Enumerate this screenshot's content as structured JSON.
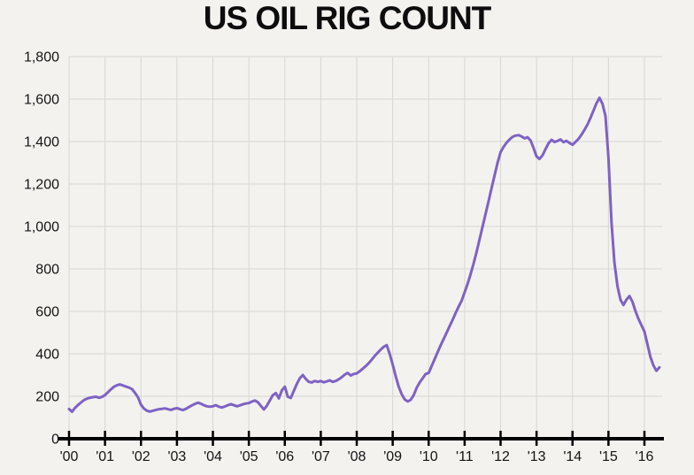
{
  "chart_data": {
    "type": "line",
    "title": "US OIL RIG COUNT",
    "xlabel": "",
    "ylabel": "",
    "ylim": [
      0,
      1800
    ],
    "grid": true,
    "legend": "none",
    "colors": {
      "background": "#f3f2ef",
      "gridline": "#d8d7d3",
      "axis": "#000000",
      "text": "#141414",
      "line": "#7e62c3"
    },
    "y_ticks": [
      0,
      200,
      400,
      600,
      800,
      1000,
      1200,
      1400,
      1600,
      1800
    ],
    "y_tick_labels": [
      "0",
      "200",
      "400",
      "600",
      "800",
      "1,000",
      "1,200",
      "1,400",
      "1,600",
      "1,800"
    ],
    "x_tick_labels": [
      "'00",
      "'01",
      "'02",
      "'03",
      "'04",
      "'05",
      "'06",
      "'07",
      "'08",
      "'09",
      "'10",
      "'11",
      "'12",
      "'13",
      "'14",
      "'15",
      "'16"
    ],
    "x_start_year": 2000,
    "points_per_year": 12,
    "series": [
      {
        "name": "US oil rig count",
        "color": "#7e62c3",
        "values": [
          140,
          127,
          146,
          159,
          171,
          182,
          189,
          193,
          196,
          198,
          193,
          197,
          206,
          219,
          233,
          245,
          252,
          256,
          251,
          246,
          241,
          234,
          216,
          195,
          160,
          142,
          132,
          128,
          132,
          136,
          139,
          141,
          143,
          139,
          136,
          141,
          144,
          139,
          135,
          141,
          149,
          157,
          164,
          170,
          165,
          158,
          153,
          151,
          153,
          158,
          151,
          147,
          152,
          158,
          163,
          158,
          153,
          157,
          162,
          166,
          168,
          175,
          180,
          172,
          155,
          138,
          155,
          180,
          205,
          215,
          190,
          228,
          245,
          198,
          192,
          225,
          258,
          285,
          300,
          282,
          268,
          265,
          272,
          268,
          272,
          266,
          270,
          275,
          268,
          272,
          280,
          290,
          302,
          310,
          298,
          305,
          308,
          318,
          330,
          342,
          356,
          372,
          390,
          405,
          420,
          433,
          441,
          400,
          350,
          295,
          245,
          210,
          185,
          176,
          183,
          205,
          240,
          265,
          285,
          305,
          310,
          342,
          375,
          408,
          440,
          470,
          500,
          530,
          560,
          592,
          622,
          650,
          690,
          730,
          775,
          825,
          880,
          940,
          1000,
          1060,
          1120,
          1180,
          1240,
          1300,
          1350,
          1375,
          1395,
          1410,
          1422,
          1428,
          1430,
          1424,
          1415,
          1420,
          1405,
          1370,
          1330,
          1318,
          1335,
          1365,
          1392,
          1408,
          1398,
          1403,
          1410,
          1397,
          1403,
          1393,
          1385,
          1398,
          1412,
          1432,
          1455,
          1480,
          1512,
          1545,
          1580,
          1606,
          1578,
          1520,
          1320,
          1020,
          830,
          720,
          655,
          630,
          655,
          672,
          645,
          602,
          565,
          535,
          505,
          445,
          385,
          345,
          320,
          336
        ]
      }
    ]
  }
}
